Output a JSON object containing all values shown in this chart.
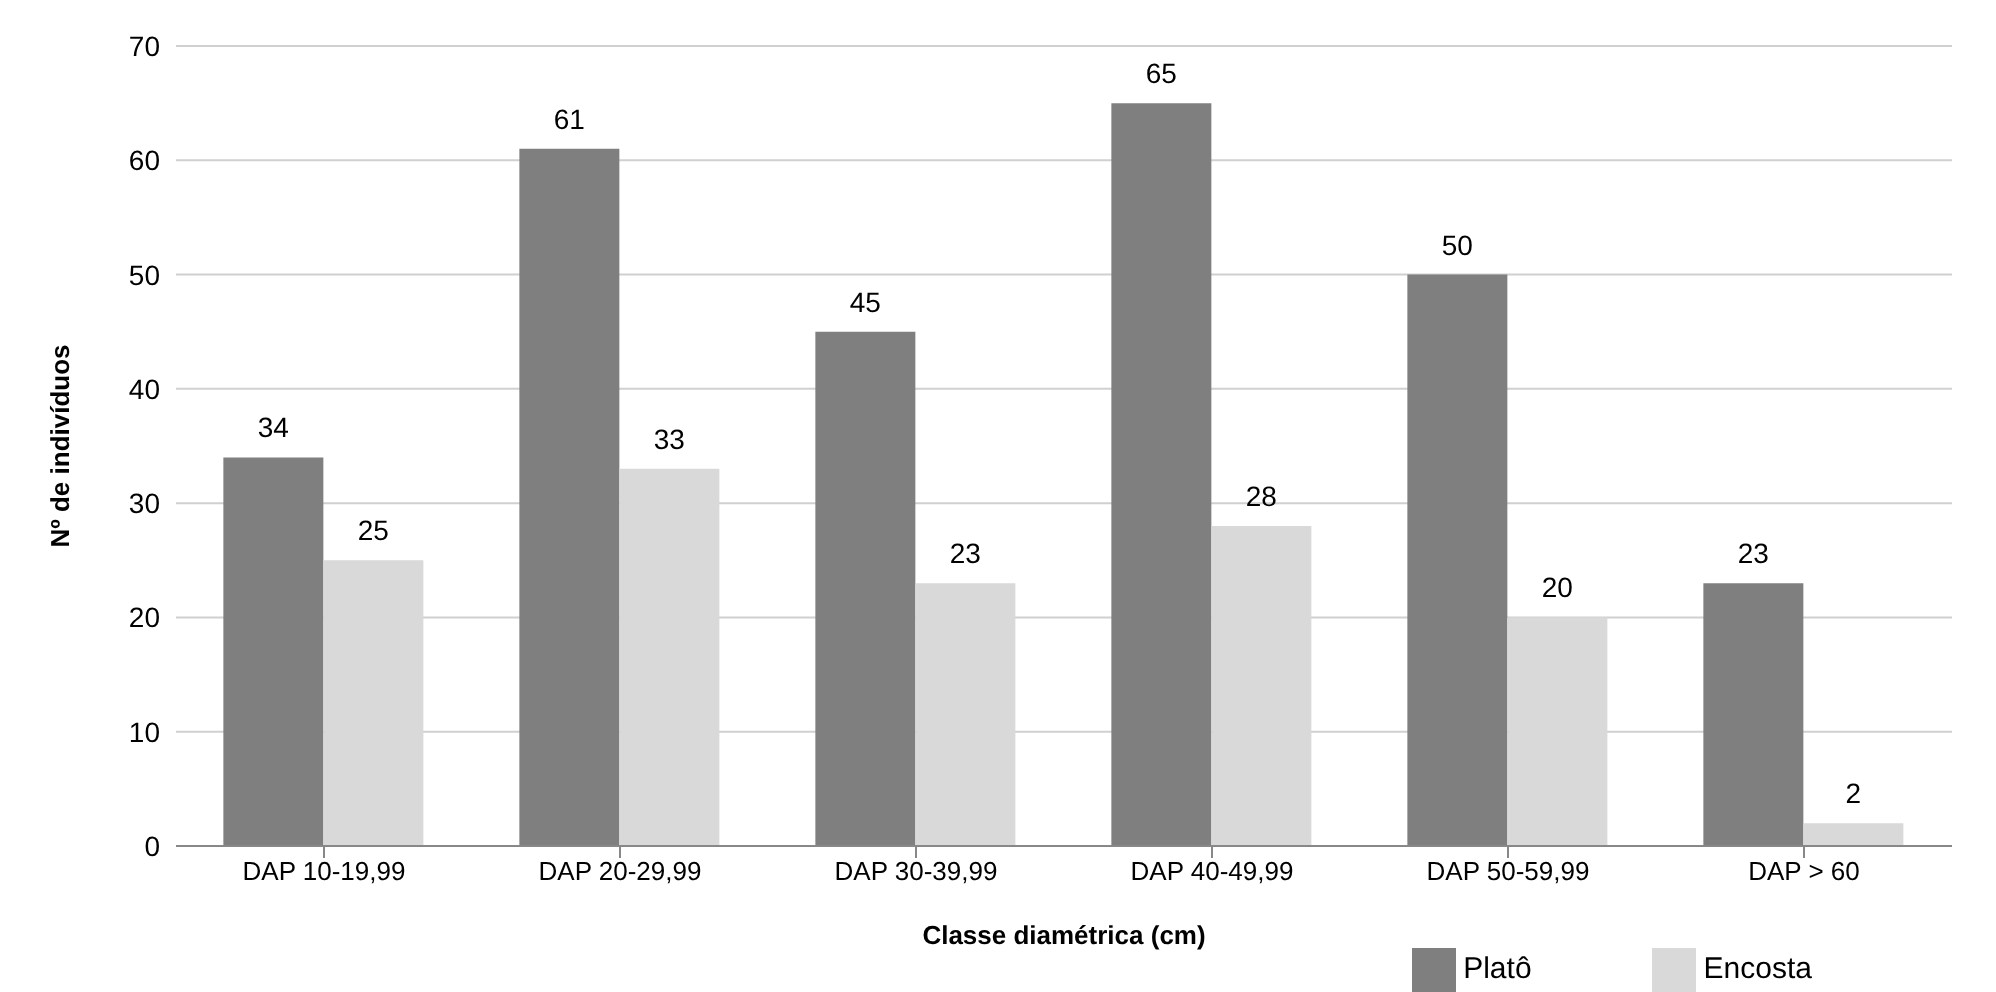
{
  "chart_data": {
    "type": "bar",
    "xlabel": "Classe diamétrica (cm)",
    "ylabel": "Nº de indivíduos",
    "categories": [
      "DAP 10-19,99",
      "DAP 20-29,99",
      "DAP 30-39,99",
      "DAP 40-49,99",
      "DAP 50-59,99",
      "DAP > 60"
    ],
    "series": [
      {
        "name": "Platô",
        "color": "#7f7f7f",
        "values": [
          34,
          61,
          45,
          65,
          50,
          23
        ]
      },
      {
        "name": "Encosta",
        "color": "#d9d9d9",
        "values": [
          25,
          33,
          23,
          28,
          20,
          2
        ]
      }
    ],
    "ylim": [
      0,
      70
    ],
    "yticks": [
      0,
      10,
      20,
      30,
      40,
      50,
      60,
      70
    ],
    "grid": "y",
    "legend": "bottom right",
    "data_labels": true
  }
}
